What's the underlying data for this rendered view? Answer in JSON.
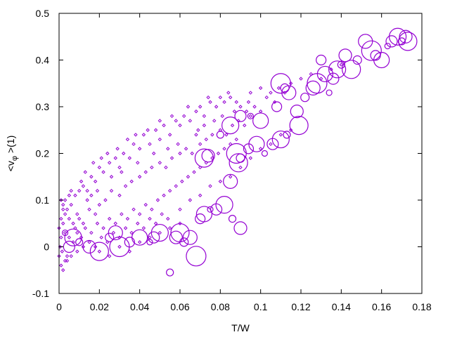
{
  "chart_data": {
    "type": "scatter",
    "title": "",
    "xlabel": "T/W",
    "ylabel_parts": {
      "prefix": "<v",
      "subscript": "φ",
      "suffix": " >(1)"
    },
    "xlim": [
      0,
      0.18
    ],
    "ylim": [
      -0.1,
      0.5
    ],
    "x_ticks": [
      0,
      0.02,
      0.04,
      0.06,
      0.08,
      0.1,
      0.12,
      0.14,
      0.16,
      0.18
    ],
    "x_tick_labels": [
      "0",
      "0.02",
      "0.04",
      "0.06",
      "0.08",
      "0.1",
      "0.12",
      "0.14",
      "0.16",
      "0.18"
    ],
    "y_ticks": [
      -0.1,
      0,
      0.1,
      0.2,
      0.3,
      0.4,
      0.5
    ],
    "y_tick_labels": [
      "-0.1",
      "0",
      "0.1",
      "0.2",
      "0.3",
      "0.4",
      "0.5"
    ],
    "grid": false,
    "marker_color": "#9400d3",
    "series": [
      {
        "marker": "small-diamond",
        "points": [
          [
            0.002,
            0.05
          ],
          [
            0.001,
            0.02
          ],
          [
            0.0015,
            -0.01
          ],
          [
            0.0005,
            0.0
          ],
          [
            0.003,
            0.03
          ],
          [
            0.004,
            -0.02
          ],
          [
            0.002,
            0.08
          ],
          [
            0.003,
            0.1
          ],
          [
            0.005,
            0.06
          ],
          [
            0.006,
            0.09
          ],
          [
            0.008,
            0.11
          ],
          [
            0.01,
            0.12
          ],
          [
            0.012,
            0.13
          ],
          [
            0.014,
            0.12
          ],
          [
            0.016,
            0.15
          ],
          [
            0.018,
            0.14
          ],
          [
            0.02,
            0.17
          ],
          [
            0.022,
            0.16
          ],
          [
            0.025,
            0.18
          ],
          [
            0.028,
            0.19
          ],
          [
            0.03,
            0.17
          ],
          [
            0.032,
            0.2
          ],
          [
            0.035,
            0.19
          ],
          [
            0.037,
            0.22
          ],
          [
            0.04,
            0.21
          ],
          [
            0.042,
            0.24
          ],
          [
            0.045,
            0.22
          ],
          [
            0.048,
            0.25
          ],
          [
            0.05,
            0.23
          ],
          [
            0.052,
            0.26
          ],
          [
            0.055,
            0.24
          ],
          [
            0.058,
            0.27
          ],
          [
            0.06,
            0.26
          ],
          [
            0.062,
            0.28
          ],
          [
            0.065,
            0.27
          ],
          [
            0.068,
            0.29
          ],
          [
            0.07,
            0.3
          ],
          [
            0.072,
            0.28
          ],
          [
            0.075,
            0.31
          ],
          [
            0.078,
            0.3
          ],
          [
            0.08,
            0.32
          ],
          [
            0.082,
            0.31
          ],
          [
            0.085,
            0.32
          ],
          [
            0.088,
            0.31
          ],
          [
            0.09,
            0.3
          ],
          [
            0.095,
            0.33
          ],
          [
            0.1,
            0.34
          ],
          [
            0.105,
            0.33
          ],
          [
            0.008,
            0.04
          ],
          [
            0.01,
            0.06
          ],
          [
            0.012,
            0.05
          ],
          [
            0.015,
            0.08
          ],
          [
            0.018,
            0.07
          ],
          [
            0.02,
            0.09
          ],
          [
            0.023,
            0.1
          ],
          [
            0.026,
            0.12
          ],
          [
            0.03,
            0.11
          ],
          [
            0.033,
            0.13
          ],
          [
            0.036,
            0.14
          ],
          [
            0.04,
            0.15
          ],
          [
            0.043,
            0.16
          ],
          [
            0.046,
            0.17
          ],
          [
            0.05,
            0.18
          ],
          [
            0.053,
            0.17
          ],
          [
            0.056,
            0.19
          ],
          [
            0.06,
            0.2
          ],
          [
            0.063,
            0.21
          ],
          [
            0.066,
            0.2
          ],
          [
            0.07,
            0.22
          ],
          [
            0.073,
            0.23
          ],
          [
            0.076,
            0.24
          ],
          [
            0.08,
            0.25
          ],
          [
            0.083,
            0.24
          ],
          [
            0.086,
            0.26
          ],
          [
            0.089,
            0.27
          ],
          [
            0.092,
            0.26
          ],
          [
            0.095,
            0.28
          ],
          [
            0.005,
            0.02
          ],
          [
            0.007,
            0.01
          ],
          [
            0.009,
            0.03
          ],
          [
            0.011,
            0.02
          ],
          [
            0.013,
            0.04
          ],
          [
            0.016,
            0.03
          ],
          [
            0.019,
            0.05
          ],
          [
            0.022,
            0.04
          ],
          [
            0.025,
            0.06
          ],
          [
            0.028,
            0.05
          ],
          [
            0.031,
            0.07
          ],
          [
            0.034,
            0.06
          ],
          [
            0.037,
            0.08
          ],
          [
            0.04,
            0.07
          ],
          [
            0.043,
            0.09
          ],
          [
            0.046,
            0.08
          ],
          [
            0.049,
            0.1
          ],
          [
            0.052,
            0.11
          ],
          [
            0.055,
            0.12
          ],
          [
            0.058,
            0.13
          ],
          [
            0.061,
            0.14
          ],
          [
            0.064,
            0.15
          ],
          [
            0.067,
            0.16
          ],
          [
            0.07,
            0.17
          ],
          [
            0.073,
            0.18
          ],
          [
            0.076,
            0.19
          ],
          [
            0.079,
            0.2
          ],
          [
            0.082,
            0.21
          ],
          [
            0.085,
            0.22
          ],
          [
            0.088,
            0.23
          ],
          [
            0.003,
            -0.03
          ],
          [
            0.006,
            -0.02
          ],
          [
            0.009,
            -0.01
          ],
          [
            0.012,
            0.0
          ],
          [
            0.015,
            0.01
          ],
          [
            0.018,
            0.0
          ],
          [
            0.021,
            0.02
          ],
          [
            0.024,
            0.01
          ],
          [
            0.027,
            0.03
          ],
          [
            0.03,
            0.02
          ],
          [
            0.033,
            0.04
          ],
          [
            0.036,
            0.03
          ],
          [
            0.039,
            0.05
          ],
          [
            0.042,
            0.04
          ],
          [
            0.045,
            0.06
          ],
          [
            0.048,
            0.05
          ],
          [
            0.051,
            0.07
          ],
          [
            0.054,
            0.06
          ],
          [
            0.001,
            -0.04
          ],
          [
            0.002,
            -0.05
          ],
          [
            0.004,
            -0.03
          ],
          [
            0.001,
            0.06
          ],
          [
            0.002,
            0.09
          ],
          [
            0.001,
            0.1
          ],
          [
            0.0,
            0.04
          ],
          [
            0.0,
            -0.02
          ],
          [
            0.003,
            0.07
          ],
          [
            0.004,
            0.08
          ],
          [
            0.005,
            0.11
          ],
          [
            0.006,
            0.12
          ],
          [
            0.011,
            0.14
          ],
          [
            0.013,
            0.16
          ],
          [
            0.017,
            0.18
          ],
          [
            0.021,
            0.19
          ],
          [
            0.024,
            0.2
          ],
          [
            0.029,
            0.21
          ],
          [
            0.034,
            0.23
          ],
          [
            0.038,
            0.24
          ],
          [
            0.044,
            0.25
          ],
          [
            0.05,
            0.27
          ],
          [
            0.056,
            0.28
          ],
          [
            0.064,
            0.3
          ],
          [
            0.074,
            0.32
          ],
          [
            0.084,
            0.33
          ],
          [
            0.094,
            0.31
          ],
          [
            0.1,
            0.29
          ],
          [
            0.107,
            0.31
          ],
          [
            0.112,
            0.33
          ],
          [
            0.068,
            0.24
          ],
          [
            0.072,
            0.26
          ],
          [
            0.077,
            0.27
          ],
          [
            0.081,
            0.28
          ],
          [
            0.087,
            0.29
          ],
          [
            0.093,
            0.29
          ],
          [
            0.097,
            0.3
          ],
          [
            0.103,
            0.32
          ],
          [
            0.109,
            0.34
          ],
          [
            0.115,
            0.35
          ],
          [
            0.12,
            0.36
          ],
          [
            0.125,
            0.37
          ],
          [
            0.13,
            0.36
          ],
          [
            0.135,
            0.38
          ],
          [
            0.14,
            0.39
          ],
          [
            0.06,
            0.08
          ],
          [
            0.065,
            0.1
          ],
          [
            0.07,
            0.11
          ],
          [
            0.075,
            0.13
          ],
          [
            0.08,
            0.14
          ],
          [
            0.085,
            0.15
          ],
          [
            0.09,
            0.17
          ],
          [
            0.095,
            0.19
          ],
          [
            0.1,
            0.21
          ],
          [
            0.105,
            0.22
          ],
          [
            0.11,
            0.24
          ],
          [
            0.115,
            0.25
          ],
          [
            0.02,
            -0.01
          ],
          [
            0.025,
            -0.02
          ],
          [
            0.03,
            0.0
          ],
          [
            0.035,
            -0.01
          ],
          [
            0.04,
            0.01
          ],
          [
            0.045,
            0.02
          ],
          [
            0.05,
            0.03
          ],
          [
            0.055,
            0.04
          ],
          [
            0.06,
            0.05
          ],
          [
            0.007,
            0.05
          ],
          [
            0.009,
            0.07
          ],
          [
            0.014,
            0.1
          ],
          [
            0.016,
            0.11
          ],
          [
            0.019,
            0.12
          ],
          [
            0.026,
            0.15
          ],
          [
            0.031,
            0.16
          ],
          [
            0.039,
            0.18
          ],
          [
            0.047,
            0.2
          ],
          [
            0.054,
            0.21
          ],
          [
            0.059,
            0.22
          ],
          [
            0.069,
            0.25
          ]
        ]
      },
      {
        "marker": "open-circle",
        "points": [
          [
            0.003,
            0.03
          ],
          [
            0.005,
            0.0
          ],
          [
            0.007,
            0.02
          ],
          [
            0.01,
            0.01
          ],
          [
            0.015,
            0.0
          ],
          [
            0.02,
            -0.01
          ],
          [
            0.025,
            0.02
          ],
          [
            0.028,
            0.03
          ],
          [
            0.03,
            0.0
          ],
          [
            0.035,
            0.01
          ],
          [
            0.04,
            0.02
          ],
          [
            0.045,
            0.01
          ],
          [
            0.047,
            0.02
          ],
          [
            0.05,
            0.03
          ],
          [
            0.055,
            -0.055
          ],
          [
            0.058,
            0.02
          ],
          [
            0.06,
            0.03
          ],
          [
            0.062,
            0.01
          ],
          [
            0.065,
            0.02
          ],
          [
            0.068,
            -0.02
          ],
          [
            0.07,
            0.06
          ],
          [
            0.072,
            0.07
          ],
          [
            0.075,
            0.08
          ],
          [
            0.078,
            0.08
          ],
          [
            0.082,
            0.09
          ],
          [
            0.086,
            0.06
          ],
          [
            0.09,
            0.04
          ],
          [
            0.089,
            0.18
          ],
          [
            0.09,
            0.19
          ],
          [
            0.085,
            0.14
          ],
          [
            0.088,
            0.2
          ],
          [
            0.094,
            0.21
          ],
          [
            0.098,
            0.22
          ],
          [
            0.102,
            0.2
          ],
          [
            0.106,
            0.22
          ],
          [
            0.11,
            0.23
          ],
          [
            0.113,
            0.24
          ],
          [
            0.118,
            0.29
          ],
          [
            0.119,
            0.26
          ],
          [
            0.122,
            0.32
          ],
          [
            0.126,
            0.34
          ],
          [
            0.128,
            0.35
          ],
          [
            0.13,
            0.4
          ],
          [
            0.132,
            0.37
          ],
          [
            0.134,
            0.33
          ],
          [
            0.136,
            0.36
          ],
          [
            0.138,
            0.38
          ],
          [
            0.14,
            0.39
          ],
          [
            0.142,
            0.41
          ],
          [
            0.145,
            0.38
          ],
          [
            0.148,
            0.4
          ],
          [
            0.152,
            0.44
          ],
          [
            0.155,
            0.42
          ],
          [
            0.157,
            0.41
          ],
          [
            0.16,
            0.4
          ],
          [
            0.163,
            0.43
          ],
          [
            0.165,
            0.44
          ],
          [
            0.168,
            0.45
          ],
          [
            0.17,
            0.44
          ],
          [
            0.172,
            0.45
          ],
          [
            0.173,
            0.44
          ],
          [
            0.112,
            0.34
          ],
          [
            0.114,
            0.33
          ],
          [
            0.11,
            0.35
          ],
          [
            0.108,
            0.3
          ],
          [
            0.1,
            0.27
          ],
          [
            0.095,
            0.28
          ],
          [
            0.09,
            0.28
          ],
          [
            0.085,
            0.26
          ],
          [
            0.08,
            0.24
          ],
          [
            0.074,
            0.195
          ],
          [
            0.072,
            0.19
          ]
        ]
      }
    ]
  }
}
